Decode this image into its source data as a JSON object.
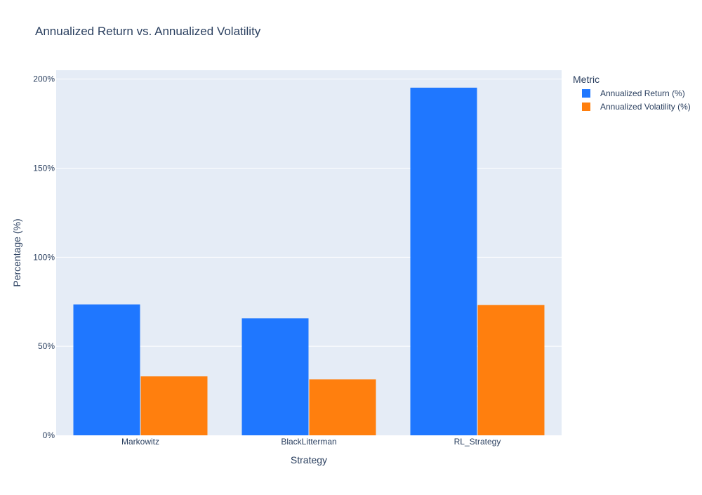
{
  "chart_data": {
    "type": "bar",
    "title": "Annualized Return vs. Annualized Volatility",
    "xlabel": "Strategy",
    "ylabel": "Percentage (%)",
    "categories": [
      "Markowitz",
      "BlackLitterman",
      "RL_Strategy"
    ],
    "series": [
      {
        "name": "Annualized Return (%)",
        "values": [
          73.5,
          65.7,
          195.2
        ],
        "color": "#1f77ff"
      },
      {
        "name": "Annualized Volatility (%)",
        "values": [
          33.1,
          31.4,
          73.2
        ],
        "color": "#ff7f0e"
      }
    ],
    "ylim": [
      0,
      205
    ],
    "yticks": [
      0,
      50,
      100,
      150,
      200
    ],
    "ytick_labels": [
      "0%",
      "50%",
      "100%",
      "150%",
      "200%"
    ],
    "legend": {
      "title": "Metric",
      "placement": "top-right outside"
    },
    "grid": true,
    "plot_background": "#e5ecf6"
  }
}
